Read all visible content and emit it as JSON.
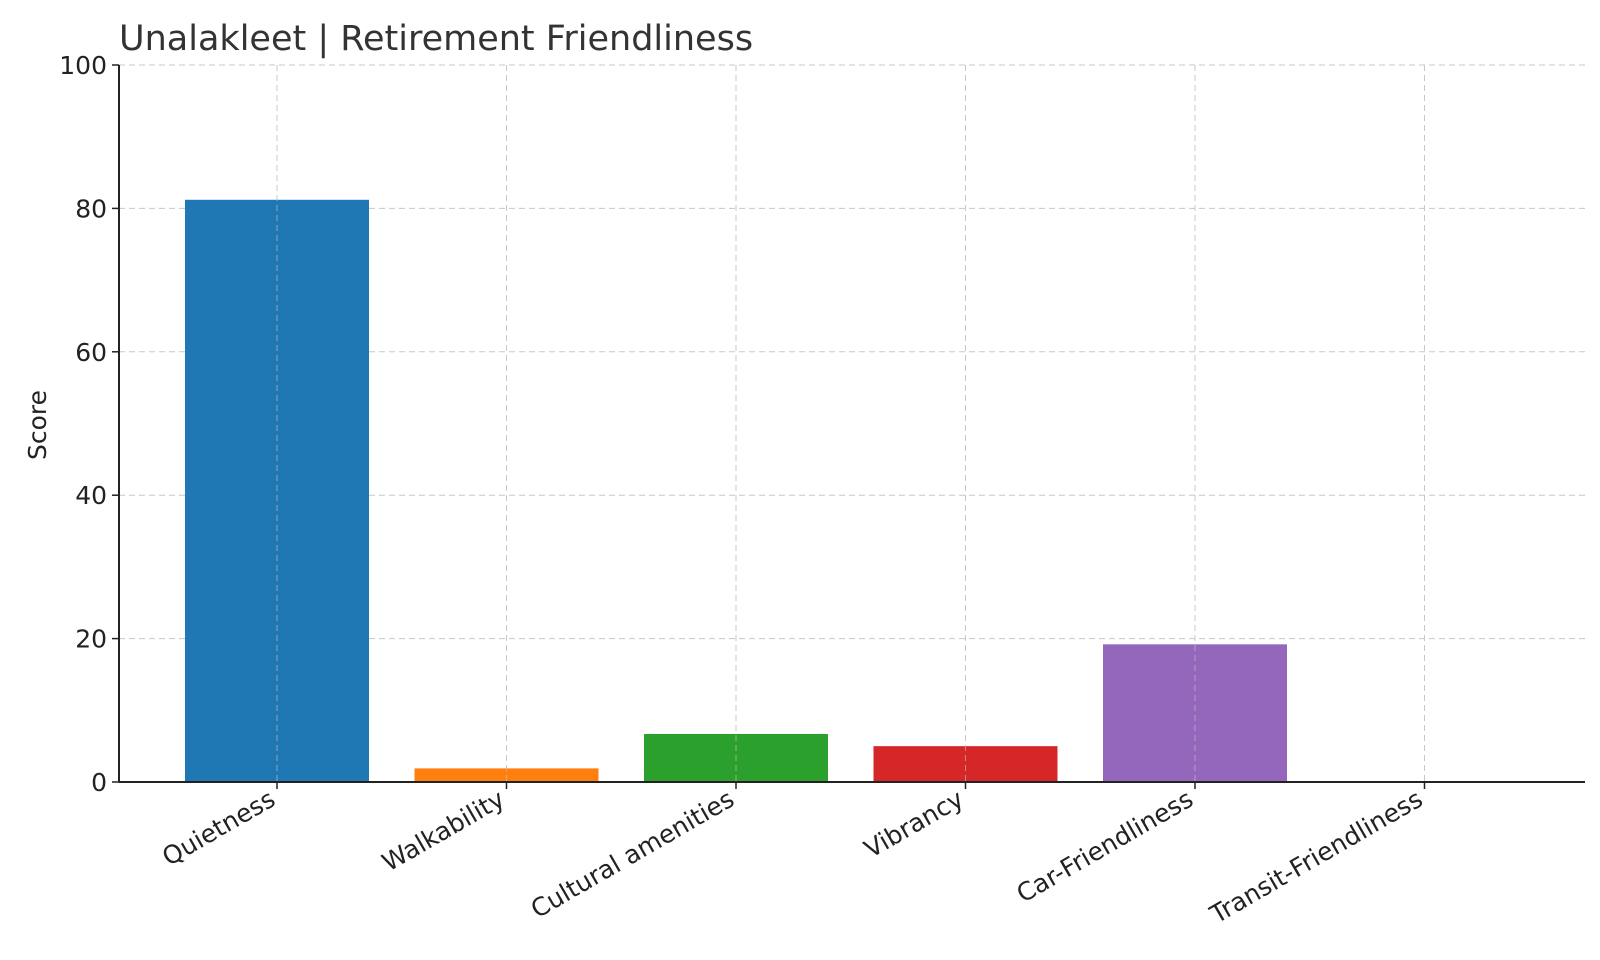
{
  "chart_data": {
    "type": "bar",
    "title": "Unalakleet | Retirement Friendliness",
    "xlabel": "",
    "ylabel": "Score",
    "ylim": [
      0,
      100
    ],
    "yticks": [
      0,
      20,
      40,
      60,
      80,
      100
    ],
    "grid": true,
    "categories": [
      "Quietness",
      "Walkability",
      "Cultural amenities",
      "Vibrancy",
      "Car-Friendliness",
      "Transit-Friendliness"
    ],
    "values": [
      81.2,
      1.9,
      6.7,
      5.0,
      19.2,
      0
    ],
    "colors": [
      "#1f77b4",
      "#ff7f0e",
      "#2ca02c",
      "#d62728",
      "#9467bd",
      "#8c564b"
    ]
  }
}
